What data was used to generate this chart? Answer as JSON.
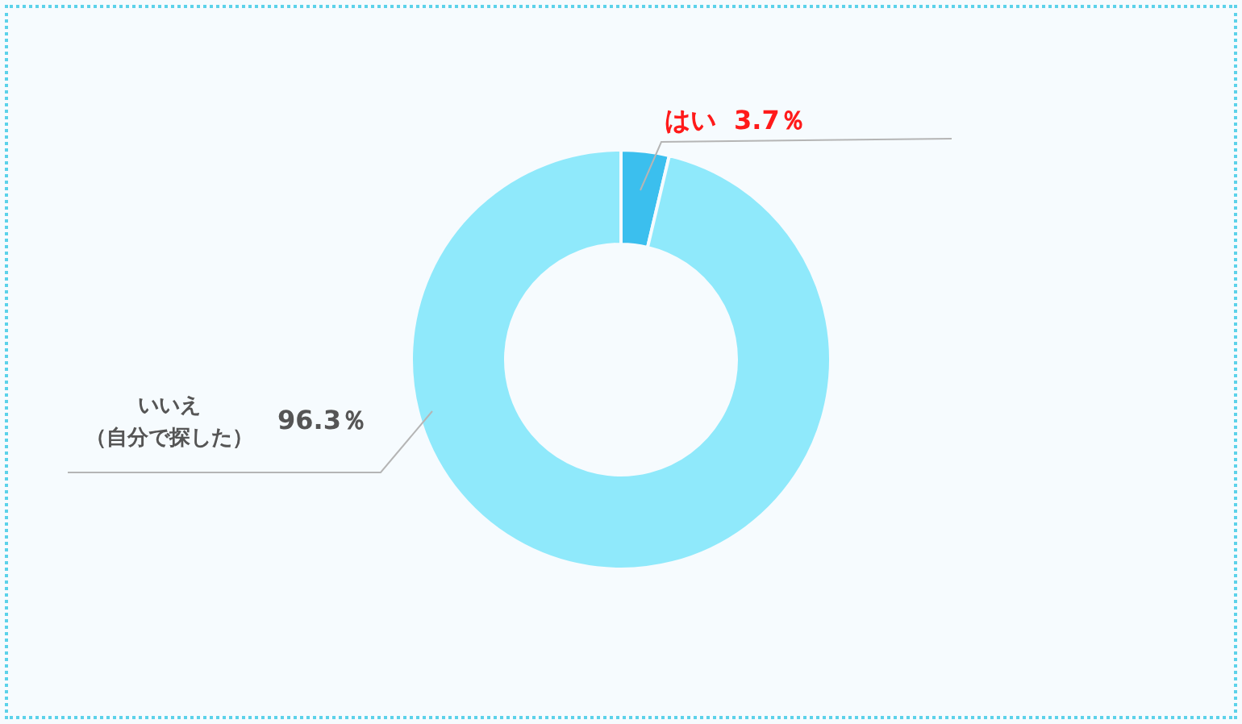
{
  "chart_data": {
    "type": "donut",
    "categories": [
      "はい",
      "いいえ（自分で探した）"
    ],
    "values": [
      3.7,
      96.3
    ],
    "colors": [
      "#3bbfee",
      "#8fe9fb"
    ],
    "value_labels": [
      "3.7％",
      "96.3％"
    ],
    "legend": false
  }
}
